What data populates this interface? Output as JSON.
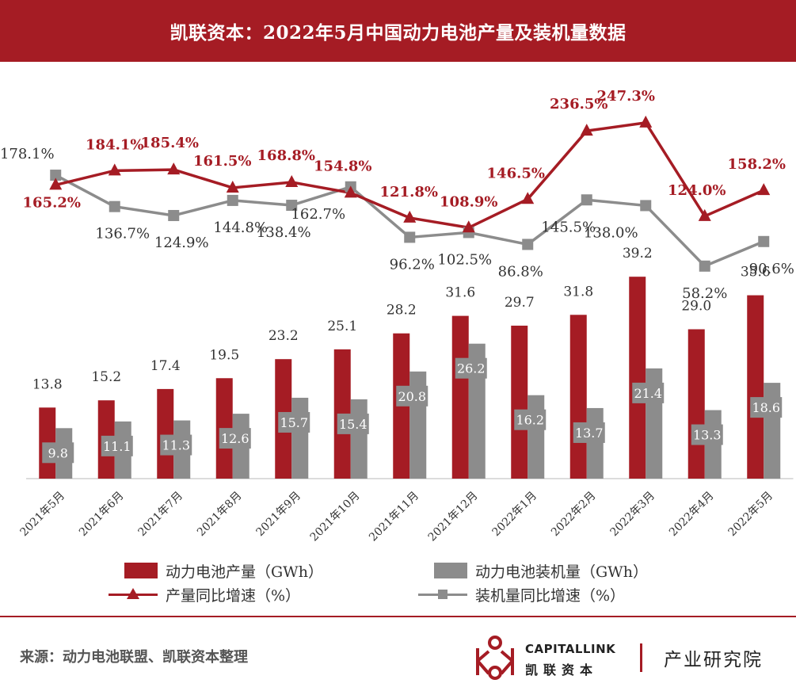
{
  "header": {
    "title": "凯联资本：2022年5月中国动力电池产量及装机量数据"
  },
  "legend": {
    "production": "动力电池产量（GWh）",
    "installed": "动力电池装机量（GWh）",
    "production_yoy": "产量同比增速（%）",
    "installed_yoy": "装机量同比增速（%）"
  },
  "footer": {
    "source": "来源：动力电池联盟、凯联资本整理",
    "logo_en": "CAPITALLINK",
    "logo_cn": "凯联资本",
    "institute": "产业研究院"
  },
  "colors": {
    "red": "#a51c24",
    "gray": "#8c8c8c",
    "text": "#333333"
  },
  "chart_data": {
    "type": "bar",
    "categories": [
      "2021年5月",
      "2021年6月",
      "2021年7月",
      "2021年8月",
      "2021年9月",
      "2021年10月",
      "2021年11月",
      "2021年12月",
      "2022年1月",
      "2022年2月",
      "2022年3月",
      "2022年4月",
      "2022年5月"
    ],
    "series": [
      {
        "name": "动力电池产量（GWh）",
        "kind": "bar",
        "color": "#a51c24",
        "values": [
          13.8,
          15.2,
          17.4,
          19.5,
          23.2,
          25.1,
          28.2,
          31.6,
          29.7,
          31.8,
          39.2,
          29.0,
          35.6
        ],
        "labels": [
          "13.8",
          "15.2",
          "17.4",
          "19.5",
          "23.2",
          "25.1",
          "28.2",
          "31.6",
          "29.7",
          "31.8",
          "39.2",
          "29.0",
          "35.6"
        ]
      },
      {
        "name": "动力电池装机量（GWh）",
        "kind": "bar",
        "color": "#8c8c8c",
        "values": [
          9.8,
          11.1,
          11.3,
          12.6,
          15.7,
          15.4,
          20.8,
          26.2,
          16.2,
          13.7,
          21.4,
          13.3,
          18.6
        ],
        "labels": [
          "9.8",
          "11.1",
          "11.3",
          "12.6",
          "15.7",
          "15.4",
          "20.8",
          "26.2",
          "16.2",
          "13.7",
          "21.4",
          "13.3",
          "18.6"
        ]
      },
      {
        "name": "产量同比增速（%）",
        "kind": "line",
        "marker": "triangle",
        "color": "#a51c24",
        "values": [
          165.2,
          184.1,
          185.4,
          161.5,
          168.8,
          154.8,
          121.8,
          108.9,
          146.5,
          236.5,
          247.3,
          124.0,
          158.2
        ],
        "labels": [
          "165.2%",
          "184.1%",
          "185.4%",
          "161.5%",
          "168.8%",
          "154.8%",
          "121.8%",
          "108.9%",
          "146.5%",
          "236.5%",
          "247.3%",
          "124.0%",
          "158.2%"
        ]
      },
      {
        "name": "装机量同比增速（%）",
        "kind": "line",
        "marker": "square",
        "color": "#8c8c8c",
        "values": [
          178.1,
          136.7,
          124.9,
          144.8,
          138.4,
          162.7,
          96.2,
          102.5,
          86.8,
          145.5,
          138.0,
          58.2,
          90.6
        ],
        "labels": [
          "178.1%",
          "136.7%",
          "124.9%",
          "144.8%",
          "138.4%",
          "162.7%",
          "96.2%",
          "102.5%",
          "86.8%",
          "145.5%",
          "138.0%",
          "58.2%",
          "90.6%"
        ]
      }
    ],
    "legend_position": "bottom",
    "grid": false
  }
}
